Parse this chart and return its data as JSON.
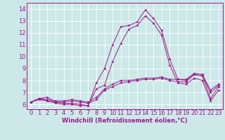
{
  "xlabel": "Windchill (Refroidissement éolien,°C)",
  "xlim": [
    -0.5,
    23.5
  ],
  "ylim": [
    5.6,
    14.5
  ],
  "yticks": [
    6,
    7,
    8,
    9,
    10,
    11,
    12,
    13,
    14
  ],
  "xticks": [
    0,
    1,
    2,
    3,
    4,
    5,
    6,
    7,
    8,
    9,
    10,
    11,
    12,
    13,
    14,
    15,
    16,
    17,
    18,
    19,
    20,
    21,
    22,
    23
  ],
  "bg_color": "#cce8e8",
  "line_color": "#9b1f8a",
  "grid_color": "#ffffff",
  "lines": [
    [
      6.2,
      6.5,
      6.6,
      6.2,
      6.1,
      6.1,
      6.0,
      5.9,
      7.8,
      9.0,
      11.0,
      12.5,
      12.6,
      12.9,
      13.9,
      13.2,
      12.2,
      9.8,
      8.1,
      8.0,
      8.5,
      8.4,
      6.5,
      7.5
    ],
    [
      6.2,
      6.4,
      6.3,
      6.1,
      6.0,
      6.0,
      5.9,
      5.9,
      7.3,
      7.6,
      9.6,
      11.1,
      12.3,
      12.6,
      13.4,
      12.8,
      11.8,
      9.3,
      7.8,
      7.7,
      8.2,
      8.0,
      6.3,
      7.2
    ],
    [
      6.2,
      6.5,
      6.3,
      6.2,
      6.2,
      6.3,
      6.2,
      6.1,
      6.4,
      7.2,
      7.5,
      7.8,
      7.9,
      8.0,
      8.1,
      8.1,
      8.2,
      8.0,
      7.9,
      7.9,
      8.5,
      8.4,
      7.0,
      7.6
    ],
    [
      6.2,
      6.5,
      6.4,
      6.3,
      6.3,
      6.4,
      6.3,
      6.2,
      6.6,
      7.3,
      7.7,
      8.0,
      8.0,
      8.1,
      8.2,
      8.2,
      8.3,
      8.1,
      8.1,
      8.1,
      8.6,
      8.5,
      7.2,
      7.7
    ]
  ],
  "xlabel_fontsize": 6,
  "tick_fontsize": 6,
  "linewidth": 0.7,
  "markersize": 2.5
}
